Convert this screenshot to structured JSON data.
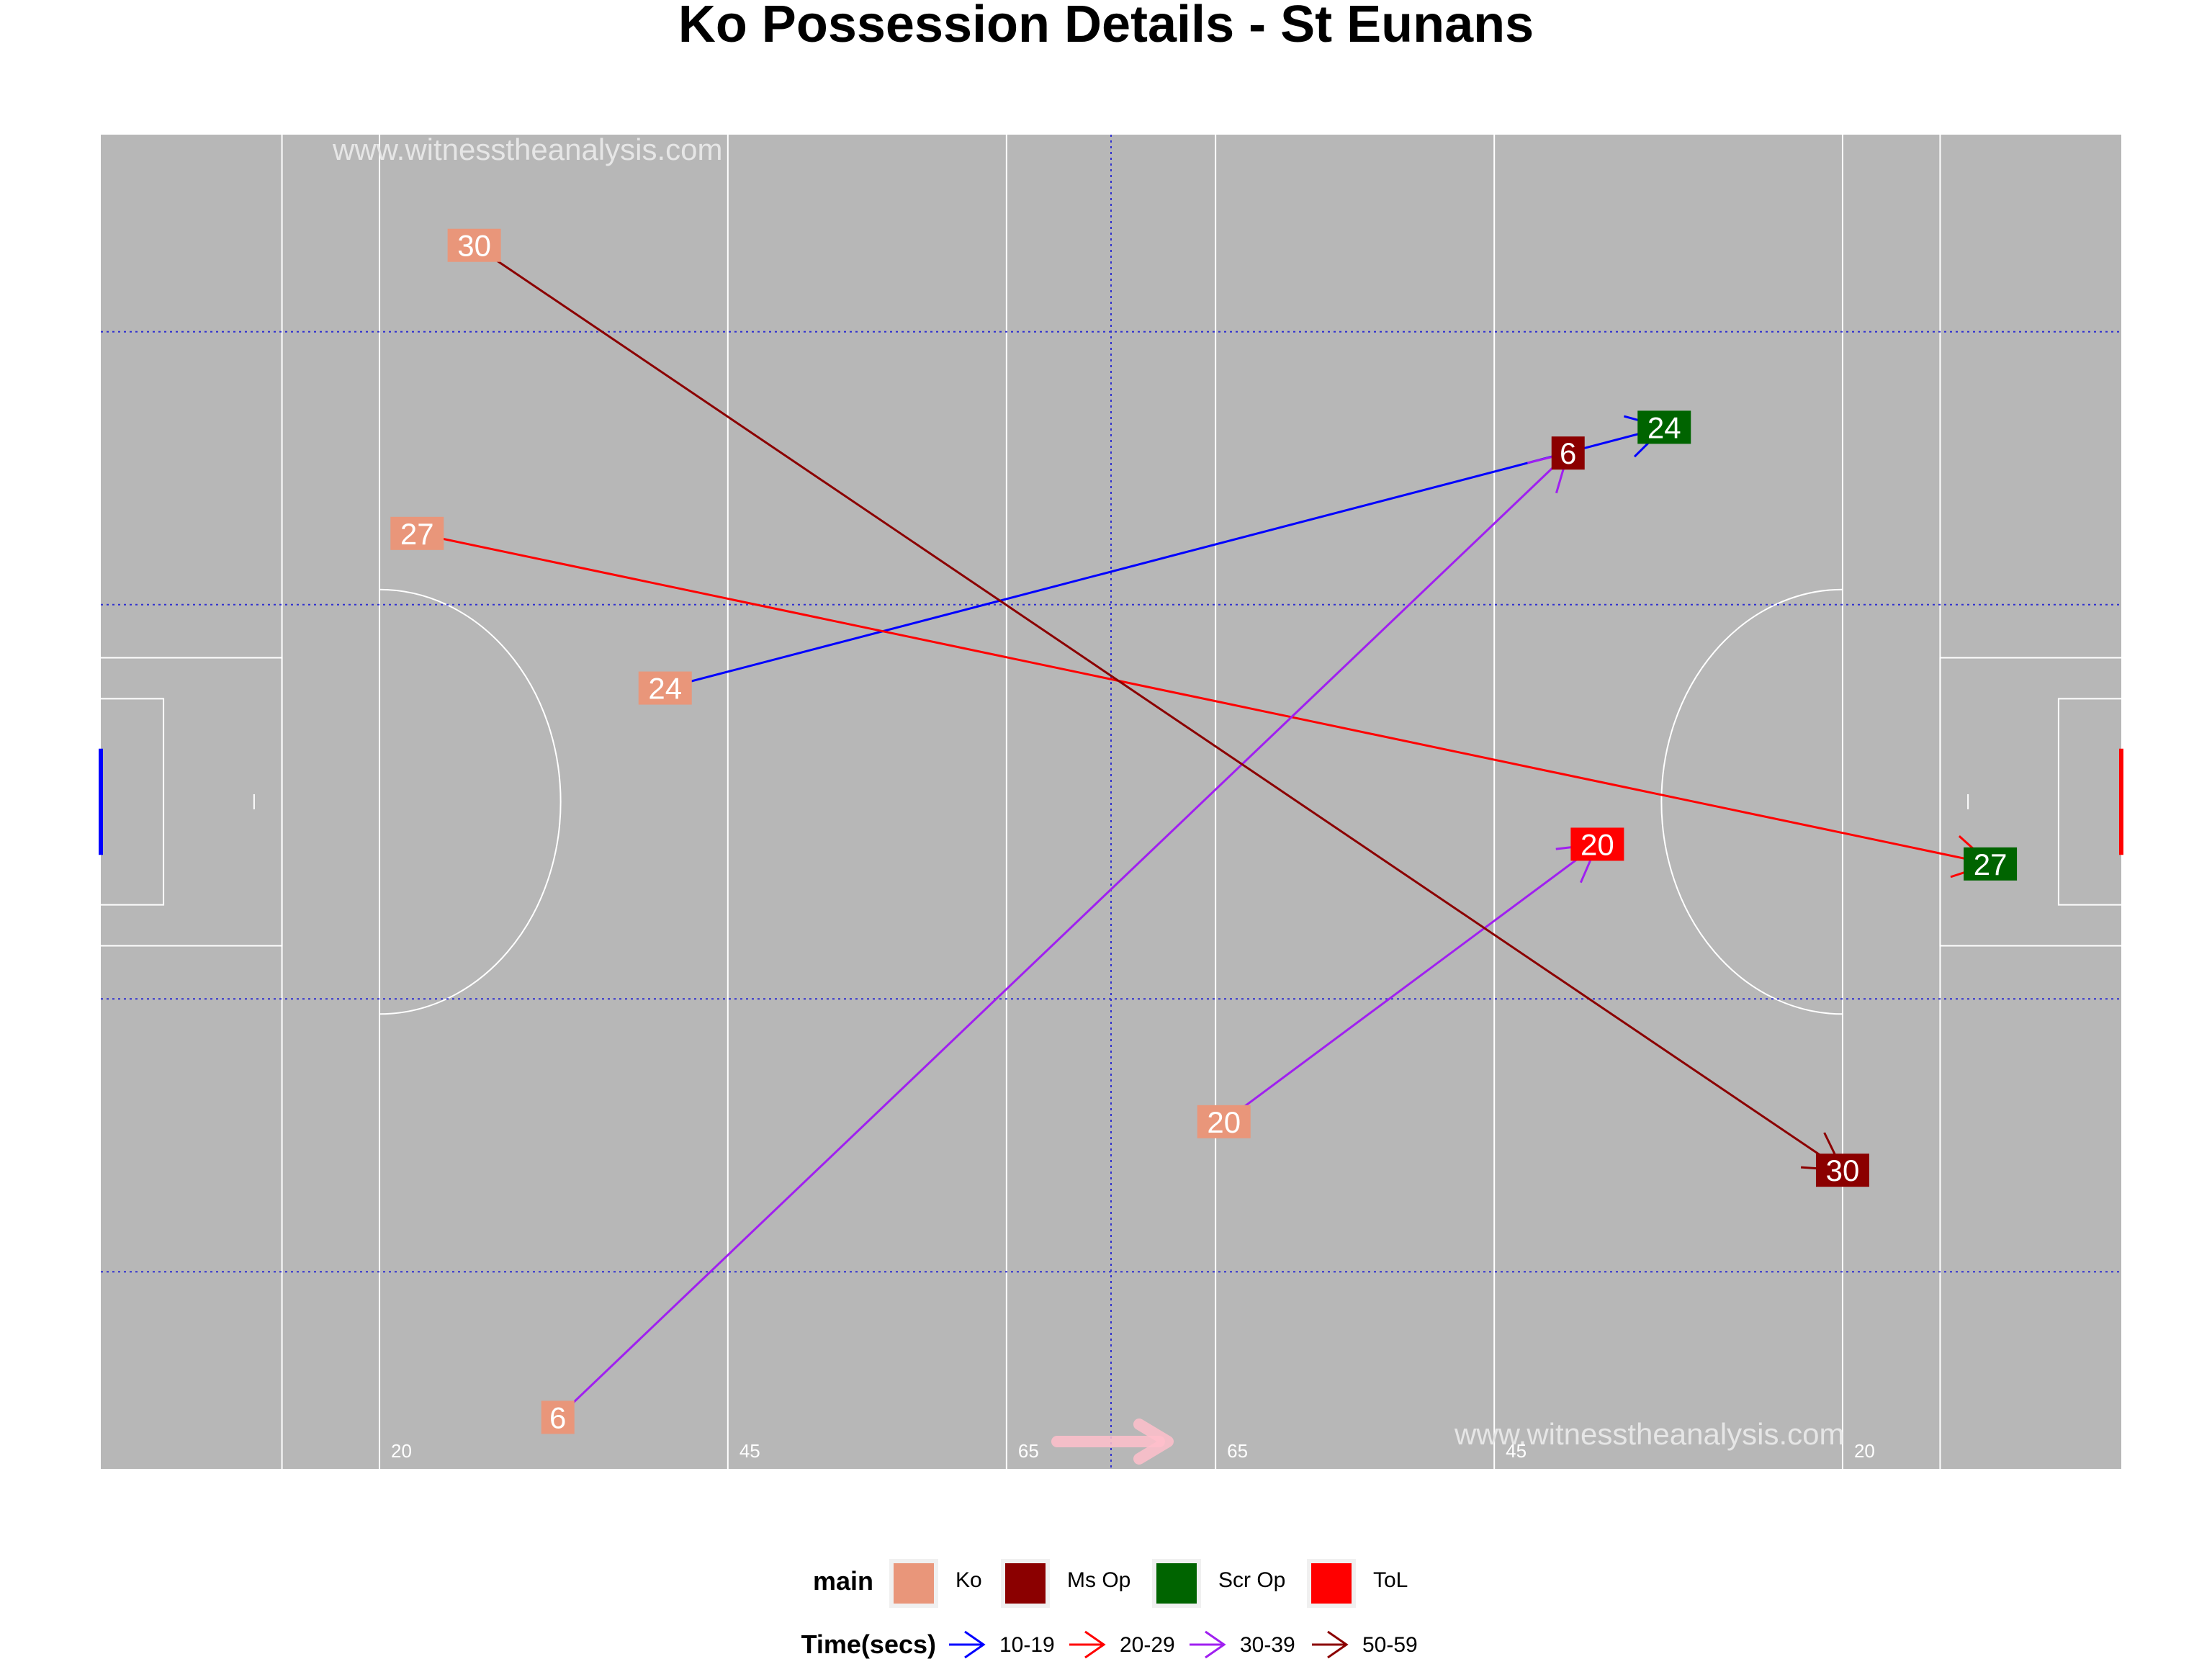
{
  "chart_data": {
    "type": "scatter",
    "title": "Ko Possession Details - St Eunans",
    "watermark": "www.witnesstheanalysis.com",
    "pitch": {
      "xlim": [
        0,
        145
      ],
      "ylim": [
        0,
        88
      ],
      "background_color": "#b7b7b7",
      "line_color": "#ffffff",
      "zone_line_color": "#3030d0",
      "distance_labels": [
        "20",
        "45",
        "65",
        "65",
        "45",
        "20"
      ],
      "left_goal_color": "#0000ff",
      "right_goal_color": "#ff0000",
      "direction_arrow_color": "#ffc0cb"
    },
    "legend": {
      "position": "bottom",
      "main_title": "main",
      "main_items": [
        {
          "label": "Ko",
          "color": "#e9967a"
        },
        {
          "label": "Ms Op",
          "color": "#8b0000"
        },
        {
          "label": "Scr Op",
          "color": "#006400"
        },
        {
          "label": "ToL",
          "color": "#ff0000"
        }
      ],
      "time_title": "Time(secs)",
      "time_items": [
        {
          "label": "10-19",
          "color": "#0000ff"
        },
        {
          "label": "20-29",
          "color": "#ff0000"
        },
        {
          "label": "30-39",
          "color": "#a020f0"
        },
        {
          "label": "50-59",
          "color": "#8b0000"
        }
      ]
    },
    "series": [
      {
        "label": "24",
        "time": "10-19",
        "from": {
          "x": 40.5,
          "y": 51.5,
          "main": "Ko"
        },
        "to": {
          "x": 112.2,
          "y": 68.7,
          "main": "Scr Op"
        }
      },
      {
        "label": "27",
        "time": "20-29",
        "from": {
          "x": 22.7,
          "y": 61.7,
          "main": "Ko"
        },
        "to": {
          "x": 135.6,
          "y": 39.9,
          "main": "Scr Op"
        }
      },
      {
        "label": "6",
        "time": "30-39",
        "from": {
          "x": 32.8,
          "y": 3.4,
          "main": "Ko"
        },
        "to": {
          "x": 105.3,
          "y": 67.0,
          "main": "Ms Op"
        }
      },
      {
        "label": "20",
        "time": "30-39",
        "from": {
          "x": 80.6,
          "y": 22.9,
          "main": "Ko"
        },
        "to": {
          "x": 107.4,
          "y": 41.2,
          "main": "ToL"
        }
      },
      {
        "label": "30",
        "time": "50-59",
        "from": {
          "x": 26.8,
          "y": 80.7,
          "main": "Ko"
        },
        "to": {
          "x": 125.0,
          "y": 19.7,
          "main": "Ms Op"
        }
      }
    ]
  }
}
